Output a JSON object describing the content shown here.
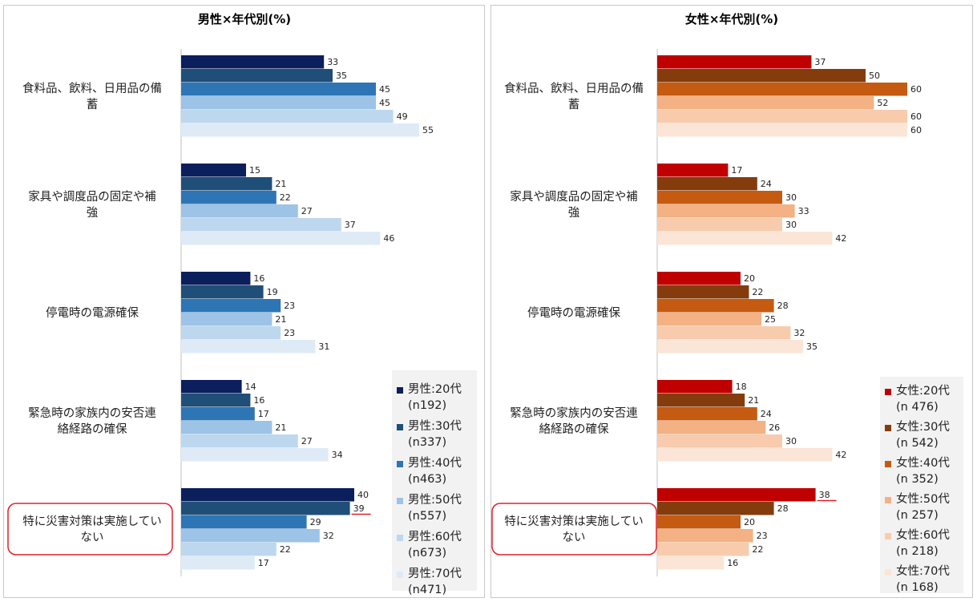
{
  "chart_data": [
    {
      "type": "bar",
      "orientation": "horizontal",
      "title": "男性×年代別(%)",
      "categories": [
        "食料品、飲料、日用品の備蓄",
        "家具や調度品の固定や補強",
        "停電時の電源確保",
        "緊急時の家族内の安否連絡経路の確保",
        "特に災害対策は実施していない"
      ],
      "category_lines": [
        [
          "食料品、飲料、日用品の備",
          "蓄"
        ],
        [
          "家具や調度品の固定や補",
          "強"
        ],
        [
          "停電時の電源確保"
        ],
        [
          "緊急時の家族内の安否連",
          "絡経路の確保"
        ],
        [
          "特に災害対策は実施してい",
          "ない"
        ]
      ],
      "highlighted_category": "特に災害対策は実施していない",
      "series": [
        {
          "name": "男性:20代(n192)",
          "legend_lines": [
            "男性:20代",
            "(n192)"
          ],
          "color": "#0a1f5c",
          "values": [
            33,
            15,
            16,
            14,
            40
          ]
        },
        {
          "name": "男性:30代(n337)",
          "legend_lines": [
            "男性:30代",
            "(n337)"
          ],
          "color": "#1f4e79",
          "values": [
            35,
            21,
            19,
            16,
            39
          ]
        },
        {
          "name": "男性:40代(n463)",
          "legend_lines": [
            "男性:40代",
            "(n463)"
          ],
          "color": "#2e75b6",
          "values": [
            45,
            22,
            23,
            17,
            29
          ]
        },
        {
          "name": "男性:50代(n557)",
          "legend_lines": [
            "男性:50代",
            "(n557)"
          ],
          "color": "#9dc3e6",
          "values": [
            45,
            27,
            21,
            21,
            32
          ]
        },
        {
          "name": "男性:60代(n673)",
          "legend_lines": [
            "男性:60代",
            "(n673)"
          ],
          "color": "#bdd7ee",
          "values": [
            49,
            37,
            23,
            27,
            22
          ]
        },
        {
          "name": "男性:70代(n471)",
          "legend_lines": [
            "男性:70代",
            "(n471)"
          ],
          "color": "#deebf7",
          "values": [
            55,
            46,
            31,
            34,
            17
          ]
        }
      ],
      "underlined_values": [
        [
          4,
          1
        ]
      ],
      "grid": false,
      "legend_position": "right"
    },
    {
      "type": "bar",
      "orientation": "horizontal",
      "title": "女性×年代別(%)",
      "categories": [
        "食料品、飲料、日用品の備蓄",
        "家具や調度品の固定や補強",
        "停電時の電源確保",
        "緊急時の家族内の安否連絡経路の確保",
        "特に災害対策は実施していない"
      ],
      "category_lines": [
        [
          "食料品、飲料、日用品の備",
          "蓄"
        ],
        [
          "家具や調度品の固定や補",
          "強"
        ],
        [
          "停電時の電源確保"
        ],
        [
          "緊急時の家族内の安否連",
          "絡経路の確保"
        ],
        [
          "特に災害対策は実施してい",
          "ない"
        ]
      ],
      "highlighted_category": "特に災害対策は実施していない",
      "series": [
        {
          "name": "女性:20代(n 476)",
          "legend_lines": [
            "女性:20代",
            "(n 476)"
          ],
          "color": "#c00000",
          "values": [
            37,
            17,
            20,
            18,
            38
          ]
        },
        {
          "name": "女性:30代(n 542)",
          "legend_lines": [
            "女性:30代",
            "(n 542)"
          ],
          "color": "#843c0c",
          "values": [
            50,
            24,
            22,
            21,
            28
          ]
        },
        {
          "name": "女性:40代(n 352)",
          "legend_lines": [
            "女性:40代",
            "(n 352)"
          ],
          "color": "#c55a11",
          "values": [
            60,
            30,
            28,
            24,
            20
          ]
        },
        {
          "name": "女性:50代(n 257)",
          "legend_lines": [
            "女性:50代",
            "(n 257)"
          ],
          "color": "#f4b183",
          "values": [
            52,
            33,
            25,
            26,
            23
          ]
        },
        {
          "name": "女性:60代(n 218)",
          "legend_lines": [
            "女性:60代",
            "(n 218)"
          ],
          "color": "#f8cbad",
          "values": [
            60,
            30,
            32,
            30,
            22
          ]
        },
        {
          "name": "女性:70代(n 168)",
          "legend_lines": [
            "女性:70代",
            "(n 168)"
          ],
          "color": "#fbe5d6",
          "values": [
            60,
            42,
            35,
            42,
            16
          ]
        }
      ],
      "underlined_values": [
        [
          4,
          0
        ]
      ],
      "grid": false,
      "legend_position": "right"
    }
  ],
  "highlight_color": "#e0202a"
}
